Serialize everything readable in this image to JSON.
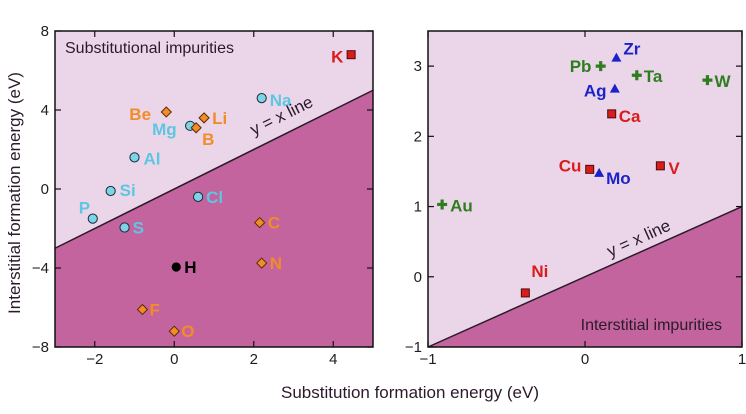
{
  "chart_data": [
    {
      "type": "scatter",
      "panel": "left",
      "xlim": [
        -3,
        5
      ],
      "ylim": [
        -8,
        8
      ],
      "xticks": [
        -2,
        0,
        2,
        4
      ],
      "yticks": [
        -8,
        -4,
        0,
        4,
        8
      ],
      "xtick_labels": [
        "−2",
        "0",
        "2",
        "4"
      ],
      "ytick_labels": [
        "−8",
        "−4",
        "0",
        "4",
        "8"
      ],
      "ylabel": "Interstitial formation energy (eV)",
      "region_label": "Substitutional impurities",
      "line_label": "y = x line",
      "points": [
        {
          "name": "K",
          "x": 4.45,
          "y": 6.8,
          "marker": "square",
          "color": "#d91c1c",
          "label_color": "#d91c1c"
        },
        {
          "name": "Na",
          "x": 2.2,
          "y": 4.6,
          "marker": "circle",
          "color": "#7fd3e6",
          "label_color": "#5ec6e0"
        },
        {
          "name": "Be",
          "x": -0.2,
          "y": 3.9,
          "marker": "diamond",
          "color": "#f28c28",
          "label_color": "#f28c28"
        },
        {
          "name": "Li",
          "x": 0.75,
          "y": 3.6,
          "marker": "diamond",
          "color": "#f28c28",
          "label_color": "#f28c28"
        },
        {
          "name": "Mg",
          "x": 0.4,
          "y": 3.2,
          "marker": "circle",
          "color": "#7fd3e6",
          "label_color": "#5ec6e0"
        },
        {
          "name": "B",
          "x": 0.55,
          "y": 3.1,
          "marker": "diamond",
          "color": "#f28c28",
          "label_color": "#f28c28"
        },
        {
          "name": "Al",
          "x": -1.0,
          "y": 1.6,
          "marker": "circle",
          "color": "#7fd3e6",
          "label_color": "#5ec6e0"
        },
        {
          "name": "Si",
          "x": -1.6,
          "y": -0.1,
          "marker": "circle",
          "color": "#7fd3e6",
          "label_color": "#5ec6e0"
        },
        {
          "name": "Cl",
          "x": 0.6,
          "y": -0.4,
          "marker": "circle",
          "color": "#7fd3e6",
          "label_color": "#5ec6e0"
        },
        {
          "name": "P",
          "x": -2.05,
          "y": -1.5,
          "marker": "circle",
          "color": "#7fd3e6",
          "label_color": "#5ec6e0"
        },
        {
          "name": "S",
          "x": -1.25,
          "y": -1.95,
          "marker": "circle",
          "color": "#7fd3e6",
          "label_color": "#5ec6e0"
        },
        {
          "name": "C",
          "x": 2.15,
          "y": -1.7,
          "marker": "diamond",
          "color": "#f28c28",
          "label_color": "#f28c28"
        },
        {
          "name": "H",
          "x": 0.05,
          "y": -3.95,
          "marker": "dot",
          "color": "#000000",
          "label_color": "#000000"
        },
        {
          "name": "N",
          "x": 2.2,
          "y": -3.75,
          "marker": "diamond",
          "color": "#f28c28",
          "label_color": "#f28c28"
        },
        {
          "name": "F",
          "x": -0.8,
          "y": -6.1,
          "marker": "diamond",
          "color": "#f28c28",
          "label_color": "#f28c28"
        },
        {
          "name": "O",
          "x": 0.0,
          "y": -7.2,
          "marker": "diamond",
          "color": "#f28c28",
          "label_color": "#f28c28"
        }
      ]
    },
    {
      "type": "scatter",
      "panel": "right",
      "xlim": [
        -1,
        1
      ],
      "ylim": [
        -1,
        3.5
      ],
      "xticks": [
        -1,
        0,
        1
      ],
      "yticks": [
        -1,
        0,
        1,
        2,
        3
      ],
      "xtick_labels": [
        "−1",
        "0",
        "1"
      ],
      "ytick_labels": [
        "−1",
        "0",
        "1",
        "2",
        "3"
      ],
      "xlabel": "Substitution formation energy (eV)",
      "region_label": "Interstitial impurities",
      "line_label": "y = x line",
      "points": [
        {
          "name": "Pb",
          "x": 0.1,
          "y": 3.0,
          "marker": "plus",
          "color": "#2e7d1e",
          "label_color": "#2e7d1e"
        },
        {
          "name": "Zr",
          "x": 0.2,
          "y": 3.12,
          "marker": "triangle",
          "color": "#1c22c9",
          "label_color": "#1c22c9"
        },
        {
          "name": "Ta",
          "x": 0.33,
          "y": 2.87,
          "marker": "plus",
          "color": "#2e7d1e",
          "label_color": "#2e7d1e"
        },
        {
          "name": "W",
          "x": 0.78,
          "y": 2.8,
          "marker": "plus",
          "color": "#2e7d1e",
          "label_color": "#2e7d1e"
        },
        {
          "name": "Ag",
          "x": 0.19,
          "y": 2.68,
          "marker": "triangle",
          "color": "#1c22c9",
          "label_color": "#1c22c9"
        },
        {
          "name": "Ca",
          "x": 0.17,
          "y": 2.32,
          "marker": "square",
          "color": "#d91c1c",
          "label_color": "#d91c1c"
        },
        {
          "name": "Cu",
          "x": 0.03,
          "y": 1.53,
          "marker": "square",
          "color": "#d91c1c",
          "label_color": "#d91c1c"
        },
        {
          "name": "Mo",
          "x": 0.09,
          "y": 1.48,
          "marker": "triangle",
          "color": "#1c22c9",
          "label_color": "#1c22c9"
        },
        {
          "name": "V",
          "x": 0.48,
          "y": 1.58,
          "marker": "square",
          "color": "#d91c1c",
          "label_color": "#d91c1c"
        },
        {
          "name": "Au",
          "x": -0.91,
          "y": 1.03,
          "marker": "plus",
          "color": "#2e7d1e",
          "label_color": "#2e7d1e"
        },
        {
          "name": "Ni",
          "x": -0.38,
          "y": -0.23,
          "marker": "square",
          "color": "#d91c1c",
          "label_color": "#d91c1c"
        }
      ]
    }
  ],
  "colors": {
    "upper_region": "#ead6e8",
    "lower_region": "#c3649e",
    "frame": "#111111"
  }
}
